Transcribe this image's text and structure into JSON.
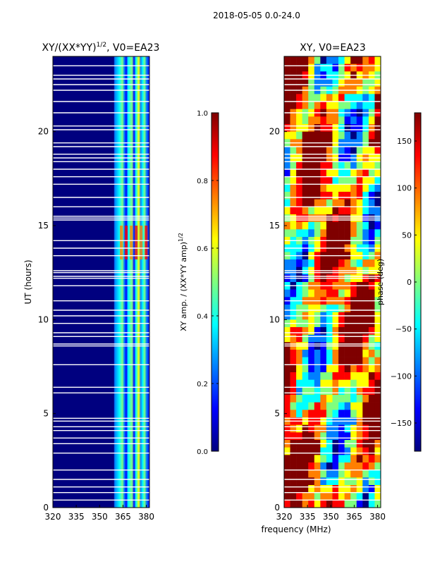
{
  "figure": {
    "suptitle": "2018-05-05 0.0-24.0",
    "shared_xlabel": "frequency (MHz)"
  },
  "colors": {
    "cmap": [
      "#00007f",
      "#0000ff",
      "#007fff",
      "#00ffff",
      "#7fff7f",
      "#ffff00",
      "#ff7f00",
      "#ff0000",
      "#7f0000"
    ],
    "frame": "#000000",
    "gap": "#ffffff"
  },
  "chart_data": [
    {
      "type": "heatmap",
      "title": "XY/(XX*YY)",
      "title_sup": "1/2",
      "title_suffix": ", V0=EA23",
      "xlabel": "",
      "ylabel": "UT (hours)",
      "xlim": [
        320,
        382
      ],
      "ylim": [
        0,
        24
      ],
      "xticks": [
        320,
        335,
        350,
        365,
        380
      ],
      "yticks": [
        0,
        5,
        10,
        15,
        20
      ],
      "colorbar": {
        "label": "XY amp. / (XX*YY amp)",
        "label_sup": "1/2",
        "range": [
          0.0,
          1.0
        ],
        "ticks": [
          "0.0",
          "0.2",
          "0.4",
          "0.6",
          "0.8",
          "1.0"
        ]
      },
      "gaps_hours": [
        0.4,
        0.8,
        1.1,
        1.5,
        2.0,
        2.9,
        3.4,
        3.7,
        4.1,
        4.3,
        4.6,
        4.75,
        6.1,
        6.4,
        7.6,
        8.6,
        8.7,
        9.1,
        9.3,
        9.8,
        10.2,
        10.5,
        11.0,
        11.8,
        12.2,
        12.3,
        12.5,
        12.6,
        13.4,
        13.8,
        14.2,
        15.3,
        15.4,
        15.5,
        16.0,
        16.5,
        17.2,
        17.6,
        18.0,
        18.4,
        18.6,
        18.8,
        19.2,
        19.4,
        20.1,
        20.3,
        21.0,
        21.6,
        22.2,
        22.5,
        22.8,
        23.0,
        23.5
      ]
    },
    {
      "type": "heatmap",
      "title": "XY, V0=EA23",
      "xlabel": "",
      "ylabel": "",
      "xlim": [
        320,
        382
      ],
      "ylim": [
        0,
        24
      ],
      "xticks": [
        320,
        335,
        350,
        365,
        380
      ],
      "yticks": [
        0,
        5,
        10,
        15,
        20
      ],
      "colorbar": {
        "label": "phase (deg)",
        "range": [
          -180,
          180
        ],
        "ticks": [
          "−150",
          "−100",
          "−50",
          "0",
          "50",
          "100",
          "150"
        ],
        "tick_values": [
          -150,
          -100,
          -50,
          0,
          50,
          100,
          150
        ]
      },
      "gaps_hours": [
        0.4,
        0.8,
        1.1,
        1.5,
        2.0,
        2.9,
        3.4,
        3.7,
        4.1,
        4.3,
        4.6,
        4.75,
        6.1,
        6.4,
        7.6,
        8.6,
        8.7,
        9.1,
        9.3,
        9.8,
        10.2,
        10.5,
        11.0,
        11.8,
        12.2,
        12.3,
        12.5,
        12.6,
        13.4,
        13.8,
        14.2,
        15.3,
        15.4,
        15.5,
        16.0,
        16.5,
        17.2,
        17.6,
        18.0,
        18.4,
        18.6,
        18.8,
        19.2,
        19.4,
        20.1,
        20.3,
        21.0,
        21.6,
        22.2,
        22.5,
        22.8,
        23.0,
        23.5
      ]
    }
  ]
}
